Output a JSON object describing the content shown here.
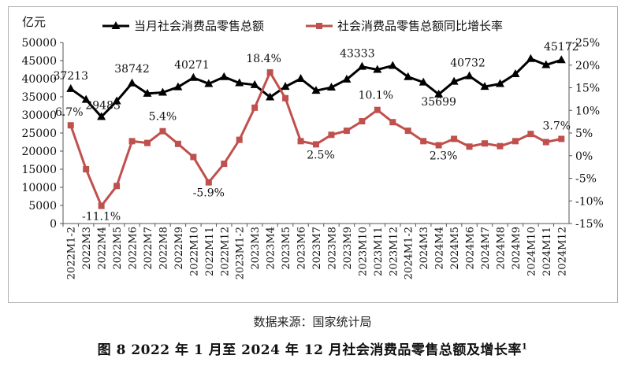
{
  "chart_data": {
    "type": "line",
    "y_left_unit": "亿元",
    "ylim_left": [
      0,
      50000
    ],
    "yticks_left": [
      0,
      5000,
      10000,
      15000,
      20000,
      25000,
      30000,
      35000,
      40000,
      45000,
      50000
    ],
    "ylim_right": [
      -15,
      25
    ],
    "yticks_right": [
      "-15%",
      "-10%",
      "-5%",
      "0%",
      "5%",
      "10%",
      "15%",
      "20%",
      "25%"
    ],
    "categories": [
      "2022M1-2",
      "2022M3",
      "2022M4",
      "2022M5",
      "2022M6",
      "2022M7",
      "2022M8",
      "2022M9",
      "2022M10",
      "2022M11",
      "2022M12",
      "2023M1-2",
      "2023M3",
      "2023M4",
      "2023M5",
      "2023M6",
      "2023M7",
      "2023M8",
      "2023M9",
      "2023M10",
      "2023M11",
      "2023M12",
      "2024M1-2",
      "2024M3",
      "2024M4",
      "2024M5",
      "2024M6",
      "2024M7",
      "2024M8",
      "2024M9",
      "2024M10",
      "2024M11",
      "2024M12"
    ],
    "series": [
      {
        "name": "当月社会消费品零售总额",
        "axis": "left",
        "color": "#000000",
        "marker": "triangle",
        "values": [
          37213,
          34200,
          29483,
          33800,
          38742,
          35900,
          36200,
          37700,
          40271,
          38600,
          40500,
          38800,
          38300,
          34900,
          37800,
          40000,
          36700,
          37600,
          39800,
          43333,
          42500,
          43600,
          40500,
          39000,
          35699,
          39200,
          40732,
          37800,
          38600,
          41300,
          45500,
          43800,
          45172
        ],
        "labels": {
          "0": "37213",
          "2": "29483",
          "4": "38742",
          "8": "40271",
          "19": "43333",
          "24": "35699",
          "26": "40732",
          "32": "45172"
        }
      },
      {
        "name": "社会消费品零售总额同比增长率",
        "axis": "right",
        "color": "#c0504d",
        "marker": "square",
        "values": [
          6.7,
          -3.0,
          -11.1,
          -6.7,
          3.2,
          2.8,
          5.4,
          2.6,
          -0.3,
          -5.9,
          -1.8,
          3.5,
          10.6,
          18.4,
          12.7,
          3.2,
          2.5,
          4.6,
          5.5,
          7.6,
          10.1,
          7.4,
          5.5,
          3.2,
          2.3,
          3.7,
          2.0,
          2.7,
          2.1,
          3.2,
          4.8,
          3.0,
          3.7
        ],
        "labels": {
          "0": "6.7%",
          "2": "-11.1%",
          "6": "5.4%",
          "9": "-5.9%",
          "13": "18.4%",
          "16": "2.5%",
          "20": "10.1%",
          "24": "2.3%",
          "32": "3.7%"
        }
      }
    ]
  },
  "source_text": "数据来源：国家统计局",
  "caption_text": "图 8  2022 年 1 月至 2024 年 12 月社会消费品零售总额及增长率",
  "caption_sup": "1"
}
